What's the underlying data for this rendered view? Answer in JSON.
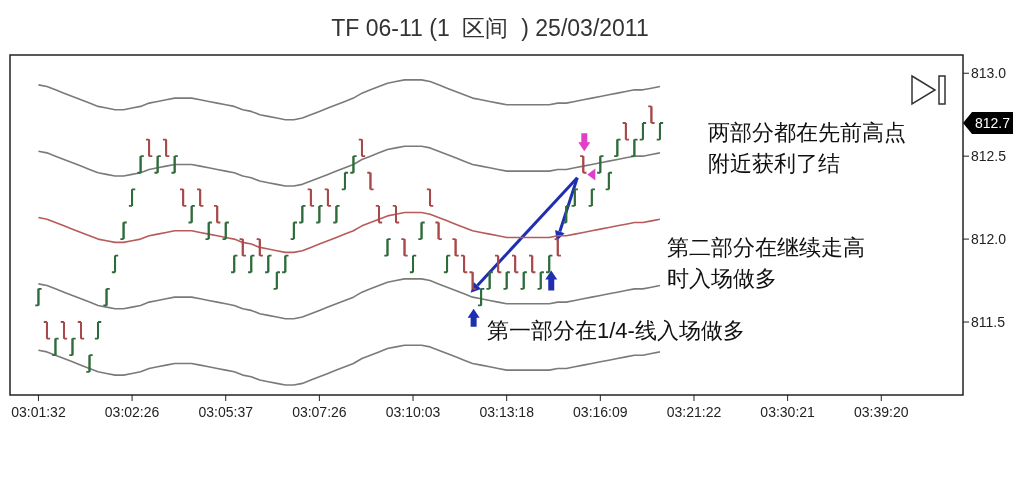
{
  "chart_data": {
    "type": "candlestick",
    "title": "TF 06-11 (1  区间  ) 25/03/2011",
    "categories": [
      "03:01:32",
      null,
      null,
      null,
      null,
      null,
      null,
      null,
      null,
      null,
      null,
      "03:02:26",
      null,
      null,
      null,
      null,
      null,
      null,
      null,
      null,
      null,
      null,
      "03:05:37",
      null,
      null,
      null,
      null,
      null,
      null,
      null,
      null,
      null,
      null,
      "03:07:26",
      null,
      null,
      null,
      null,
      null,
      null,
      null,
      null,
      null,
      null,
      "03:10:03",
      null,
      null,
      null,
      null,
      null,
      null,
      null,
      null,
      null,
      null,
      "03:13:18",
      null,
      null,
      null,
      null,
      null,
      null,
      null,
      null,
      null,
      null,
      "03:16:09",
      null,
      null,
      null,
      null,
      null,
      null,
      null,
      null,
      null,
      null,
      "03:21:22",
      null,
      null,
      null,
      null,
      null,
      null,
      null,
      null,
      null,
      null,
      "03:30:21",
      null,
      null,
      null,
      null,
      null,
      null,
      null,
      null,
      null,
      null,
      "03:39:20",
      null,
      null,
      null,
      null,
      null,
      null,
      null,
      null,
      null
    ],
    "ohlc": [
      [
        811.6,
        811.7,
        811.6,
        811.7
      ],
      [
        811.5,
        811.5,
        811.4,
        811.4
      ],
      [
        811.3,
        811.4,
        811.3,
        811.4
      ],
      [
        811.5,
        811.5,
        811.4,
        811.4
      ],
      [
        811.3,
        811.4,
        811.3,
        811.4
      ],
      [
        811.5,
        811.5,
        811.4,
        811.4
      ],
      [
        811.2,
        811.3,
        811.2,
        811.3
      ],
      [
        811.4,
        811.5,
        811.4,
        811.5
      ],
      [
        811.6,
        811.7,
        811.6,
        811.7
      ],
      [
        811.8,
        811.9,
        811.8,
        811.9
      ],
      [
        812.0,
        812.1,
        812.0,
        812.1
      ],
      [
        812.2,
        812.3,
        812.2,
        812.3
      ],
      [
        812.4,
        812.5,
        812.4,
        812.5
      ],
      [
        812.6,
        812.6,
        812.5,
        812.5
      ],
      [
        812.4,
        812.5,
        812.4,
        812.5
      ],
      [
        812.6,
        812.6,
        812.5,
        812.5
      ],
      [
        812.4,
        812.5,
        812.4,
        812.5
      ],
      [
        812.3,
        812.3,
        812.2,
        812.2
      ],
      [
        812.1,
        812.2,
        812.1,
        812.2
      ],
      [
        812.3,
        812.3,
        812.2,
        812.2
      ],
      [
        812.0,
        812.1,
        812.0,
        812.1
      ],
      [
        812.2,
        812.2,
        812.1,
        812.1
      ],
      [
        812.0,
        812.1,
        812.0,
        812.1
      ],
      [
        811.8,
        811.9,
        811.8,
        811.9
      ],
      [
        812.0,
        812.0,
        811.9,
        811.9
      ],
      [
        811.8,
        811.9,
        811.8,
        811.9
      ],
      [
        812.0,
        812.0,
        811.9,
        811.9
      ],
      [
        811.8,
        811.9,
        811.8,
        811.9
      ],
      [
        811.7,
        811.8,
        811.7,
        811.8
      ],
      [
        811.8,
        811.9,
        811.8,
        811.9
      ],
      [
        812.0,
        812.1,
        812.0,
        812.1
      ],
      [
        812.1,
        812.2,
        812.1,
        812.2
      ],
      [
        812.3,
        812.3,
        812.2,
        812.2
      ],
      [
        812.1,
        812.2,
        812.1,
        812.2
      ],
      [
        812.3,
        812.3,
        812.2,
        812.2
      ],
      [
        812.1,
        812.2,
        812.1,
        812.2
      ],
      [
        812.3,
        812.4,
        812.3,
        812.4
      ],
      [
        812.4,
        812.5,
        812.4,
        812.5
      ],
      [
        812.6,
        812.6,
        812.5,
        812.5
      ],
      [
        812.4,
        812.4,
        812.3,
        812.3
      ],
      [
        812.2,
        812.2,
        812.1,
        812.1
      ],
      [
        811.9,
        812.0,
        811.9,
        812.0
      ],
      [
        812.2,
        812.2,
        812.1,
        812.1
      ],
      [
        812.0,
        812.0,
        811.9,
        811.9
      ],
      [
        811.8,
        811.9,
        811.8,
        811.9
      ],
      [
        812.0,
        812.1,
        812.0,
        812.1
      ],
      [
        812.3,
        812.3,
        812.2,
        812.2
      ],
      [
        812.1,
        812.1,
        812.0,
        812.0
      ],
      [
        811.8,
        811.9,
        811.8,
        811.9
      ],
      [
        812.0,
        812.0,
        811.9,
        811.9
      ],
      [
        811.9,
        811.9,
        811.8,
        811.8
      ],
      [
        811.8,
        811.8,
        811.7,
        811.7
      ],
      [
        811.6,
        811.7,
        811.6,
        811.7
      ],
      [
        811.7,
        811.8,
        811.7,
        811.8
      ],
      [
        811.9,
        811.9,
        811.8,
        811.8
      ],
      [
        811.7,
        811.8,
        811.7,
        811.8
      ],
      [
        811.9,
        811.9,
        811.8,
        811.8
      ],
      [
        811.7,
        811.8,
        811.7,
        811.8
      ],
      [
        811.9,
        811.9,
        811.8,
        811.8
      ],
      [
        811.7,
        811.8,
        811.7,
        811.8
      ],
      [
        811.8,
        811.9,
        811.8,
        811.9
      ],
      [
        812.0,
        812.0,
        811.9,
        811.9
      ],
      [
        812.1,
        812.2,
        812.1,
        812.2
      ],
      [
        812.2,
        812.3,
        812.2,
        812.3
      ],
      [
        812.5,
        812.5,
        812.4,
        812.4
      ],
      [
        812.2,
        812.3,
        812.2,
        812.3
      ],
      [
        812.4,
        812.5,
        812.4,
        812.5
      ],
      [
        812.3,
        812.4,
        812.3,
        812.4
      ],
      [
        812.5,
        812.6,
        812.5,
        812.6
      ],
      [
        812.7,
        812.7,
        812.6,
        812.6
      ],
      [
        812.5,
        812.6,
        812.5,
        812.6
      ],
      [
        812.6,
        812.7,
        812.6,
        812.7
      ],
      [
        812.8,
        812.8,
        812.7,
        812.7
      ],
      [
        812.6,
        812.7,
        812.6,
        812.7
      ],
      null,
      null,
      null,
      null,
      null,
      null,
      null,
      null,
      null,
      null,
      null,
      null,
      null,
      null,
      null,
      null,
      null,
      null,
      null,
      null,
      null,
      null,
      null,
      null,
      null,
      null,
      null,
      null,
      null,
      null,
      null,
      null,
      null,
      null,
      null
    ],
    "colors": [
      "#2f6b3a",
      "#a84848",
      "#2f6b3a",
      "#a84848",
      "#2f6b3a",
      "#a84848",
      "#2f6b3a",
      "#2f6b3a",
      "#2f6b3a",
      "#2f6b3a",
      "#2f6b3a",
      "#2f6b3a",
      "#2f6b3a",
      "#a84848",
      "#2f6b3a",
      "#a84848",
      "#2f6b3a",
      "#a84848",
      "#2f6b3a",
      "#a84848",
      "#2f6b3a",
      "#a84848",
      "#2f6b3a",
      "#2f6b3a",
      "#a84848",
      "#2f6b3a",
      "#a84848",
      "#2f6b3a",
      "#2f6b3a",
      "#2f6b3a",
      "#2f6b3a",
      "#2f6b3a",
      "#a84848",
      "#2f6b3a",
      "#a84848",
      "#2f6b3a",
      "#2f6b3a",
      "#2f6b3a",
      "#a84848",
      "#a84848",
      "#a84848",
      "#2f6b3a",
      "#a84848",
      "#a84848",
      "#2f6b3a",
      "#2f6b3a",
      "#a84848",
      "#a84848",
      "#2f6b3a",
      "#a84848",
      "#a84848",
      "#a84848",
      "#2f6b3a",
      "#2f6b3a",
      "#a84848",
      "#2f6b3a",
      "#a84848",
      "#2f6b3a",
      "#a84848",
      "#2f6b3a",
      "#2f6b3a",
      "#a84848",
      "#2f6b3a",
      "#2f6b3a",
      "#a84848",
      "#2f6b3a",
      "#2f6b3a",
      "#2f6b3a",
      "#2f6b3a",
      "#a84848",
      "#2f6b3a",
      "#2f6b3a",
      "#a84848",
      "#2f6b3a",
      null,
      null,
      null,
      null,
      null,
      null,
      null,
      null,
      null,
      null,
      null,
      null,
      null,
      null,
      null,
      null,
      null,
      null,
      null,
      null,
      null,
      null,
      null,
      null,
      null,
      null,
      null,
      null,
      null,
      null,
      null,
      null,
      null,
      null,
      null
    ],
    "series": [
      {
        "type": "line",
        "color": "#7a7a7a",
        "values": [
          812.93,
          812.92,
          812.9,
          812.88,
          812.86,
          812.84,
          812.82,
          812.8,
          812.79,
          812.78,
          812.78,
          812.79,
          812.8,
          812.82,
          812.83,
          812.84,
          812.85,
          812.85,
          812.85,
          812.84,
          812.83,
          812.82,
          812.81,
          812.8,
          812.78,
          812.77,
          812.75,
          812.74,
          812.73,
          812.72,
          812.72,
          812.73,
          812.75,
          812.77,
          812.79,
          812.81,
          812.83,
          812.85,
          812.88,
          812.9,
          812.92,
          812.94,
          812.95,
          812.96,
          812.96,
          812.96,
          812.95,
          812.93,
          812.91,
          812.89,
          812.87,
          812.85,
          812.84,
          812.83,
          812.82,
          812.81,
          812.81,
          812.81,
          812.81,
          812.81,
          812.81,
          812.82,
          812.82,
          812.83,
          812.84,
          812.85,
          812.86,
          812.87,
          812.88,
          812.89,
          812.9,
          812.9,
          812.91,
          812.92,
          null,
          null,
          null,
          null,
          null,
          null,
          null,
          null,
          null,
          null,
          null,
          null,
          null,
          null,
          null,
          null,
          null,
          null,
          null,
          null,
          null,
          null,
          null,
          null,
          null,
          null,
          null,
          null,
          null,
          null,
          null,
          null,
          null,
          null,
          null
        ]
      },
      {
        "type": "line",
        "color": "#7a7a7a",
        "values": [
          812.53,
          812.52,
          812.5,
          812.48,
          812.46,
          812.44,
          812.42,
          812.4,
          812.39,
          812.38,
          812.38,
          812.39,
          812.4,
          812.42,
          812.43,
          812.44,
          812.45,
          812.45,
          812.45,
          812.44,
          812.43,
          812.42,
          812.41,
          812.4,
          812.38,
          812.37,
          812.35,
          812.34,
          812.33,
          812.32,
          812.32,
          812.33,
          812.35,
          812.37,
          812.39,
          812.41,
          812.43,
          812.45,
          812.48,
          812.5,
          812.52,
          812.54,
          812.55,
          812.56,
          812.56,
          812.56,
          812.55,
          812.53,
          812.51,
          812.49,
          812.47,
          812.45,
          812.44,
          812.43,
          812.42,
          812.41,
          812.41,
          812.41,
          812.41,
          812.41,
          812.41,
          812.42,
          812.42,
          812.43,
          812.44,
          812.45,
          812.46,
          812.47,
          812.48,
          812.49,
          812.5,
          812.5,
          812.51,
          812.52,
          null,
          null,
          null,
          null,
          null,
          null,
          null,
          null,
          null,
          null,
          null,
          null,
          null,
          null,
          null,
          null,
          null,
          null,
          null,
          null,
          null,
          null,
          null,
          null,
          null,
          null,
          null,
          null,
          null,
          null,
          null,
          null,
          null,
          null,
          null
        ]
      },
      {
        "type": "line",
        "color": "#b85a5a",
        "values": [
          812.13,
          812.12,
          812.1,
          812.08,
          812.06,
          812.04,
          812.02,
          812.0,
          811.99,
          811.98,
          811.98,
          811.99,
          812.0,
          812.02,
          812.03,
          812.04,
          812.05,
          812.05,
          812.05,
          812.04,
          812.03,
          812.02,
          812.01,
          812.0,
          811.98,
          811.97,
          811.95,
          811.94,
          811.93,
          811.92,
          811.92,
          811.93,
          811.95,
          811.97,
          811.99,
          812.01,
          812.03,
          812.05,
          812.08,
          812.1,
          812.12,
          812.14,
          812.15,
          812.16,
          812.16,
          812.16,
          812.15,
          812.13,
          812.11,
          812.09,
          812.07,
          812.05,
          812.04,
          812.03,
          812.02,
          812.01,
          812.01,
          812.01,
          812.01,
          812.01,
          812.01,
          812.02,
          812.02,
          812.03,
          812.04,
          812.05,
          812.06,
          812.07,
          812.08,
          812.09,
          812.1,
          812.1,
          812.11,
          812.12,
          null,
          null,
          null,
          null,
          null,
          null,
          null,
          null,
          null,
          null,
          null,
          null,
          null,
          null,
          null,
          null,
          null,
          null,
          null,
          null,
          null,
          null,
          null,
          null,
          null,
          null,
          null,
          null,
          null,
          null,
          null,
          null,
          null,
          null,
          null
        ]
      },
      {
        "type": "line",
        "color": "#7a7a7a",
        "values": [
          811.73,
          811.72,
          811.7,
          811.68,
          811.66,
          811.64,
          811.62,
          811.6,
          811.59,
          811.58,
          811.58,
          811.59,
          811.6,
          811.62,
          811.63,
          811.64,
          811.65,
          811.65,
          811.65,
          811.64,
          811.63,
          811.62,
          811.61,
          811.6,
          811.58,
          811.57,
          811.55,
          811.54,
          811.53,
          811.52,
          811.52,
          811.53,
          811.55,
          811.57,
          811.59,
          811.61,
          811.63,
          811.65,
          811.68,
          811.7,
          811.72,
          811.74,
          811.75,
          811.76,
          811.76,
          811.76,
          811.75,
          811.73,
          811.71,
          811.69,
          811.67,
          811.65,
          811.64,
          811.63,
          811.62,
          811.61,
          811.61,
          811.61,
          811.61,
          811.61,
          811.61,
          811.62,
          811.62,
          811.63,
          811.64,
          811.65,
          811.66,
          811.67,
          811.68,
          811.69,
          811.7,
          811.7,
          811.71,
          811.72,
          null,
          null,
          null,
          null,
          null,
          null,
          null,
          null,
          null,
          null,
          null,
          null,
          null,
          null,
          null,
          null,
          null,
          null,
          null,
          null,
          null,
          null,
          null,
          null,
          null,
          null,
          null,
          null,
          null,
          null,
          null,
          null,
          null,
          null,
          null
        ]
      },
      {
        "type": "line",
        "color": "#7a7a7a",
        "values": [
          811.33,
          811.32,
          811.3,
          811.28,
          811.26,
          811.24,
          811.22,
          811.2,
          811.19,
          811.18,
          811.18,
          811.19,
          811.2,
          811.22,
          811.23,
          811.24,
          811.25,
          811.25,
          811.25,
          811.24,
          811.23,
          811.22,
          811.21,
          811.2,
          811.18,
          811.17,
          811.15,
          811.14,
          811.13,
          811.12,
          811.12,
          811.13,
          811.15,
          811.17,
          811.19,
          811.21,
          811.23,
          811.25,
          811.28,
          811.3,
          811.32,
          811.34,
          811.35,
          811.36,
          811.36,
          811.36,
          811.35,
          811.33,
          811.31,
          811.29,
          811.27,
          811.25,
          811.24,
          811.23,
          811.22,
          811.21,
          811.21,
          811.21,
          811.21,
          811.21,
          811.21,
          811.22,
          811.22,
          811.23,
          811.24,
          811.25,
          811.26,
          811.27,
          811.28,
          811.29,
          811.3,
          811.3,
          811.31,
          811.32,
          null,
          null,
          null,
          null,
          null,
          null,
          null,
          null,
          null,
          null,
          null,
          null,
          null,
          null,
          null,
          null,
          null,
          null,
          null,
          null,
          null,
          null,
          null,
          null,
          null,
          null,
          null,
          null,
          null,
          null,
          null,
          null,
          null,
          null,
          null
        ]
      }
    ],
    "ylim": [
      811.06,
      813.11
    ],
    "yticks": [
      {
        "value": 811.5,
        "label": "811.5"
      },
      {
        "value": 812,
        "label": "812.0"
      },
      {
        "value": 812.5,
        "label": "812.5"
      },
      {
        "value": 813,
        "label": "813.0"
      }
    ],
    "annotations": [
      "两部分都在先前高点附近获利了结",
      "第二部分在继续走高时入场做多",
      "第一部分在1/4-线入场做多",
      "812.7"
    ],
    "grid": false
  }
}
